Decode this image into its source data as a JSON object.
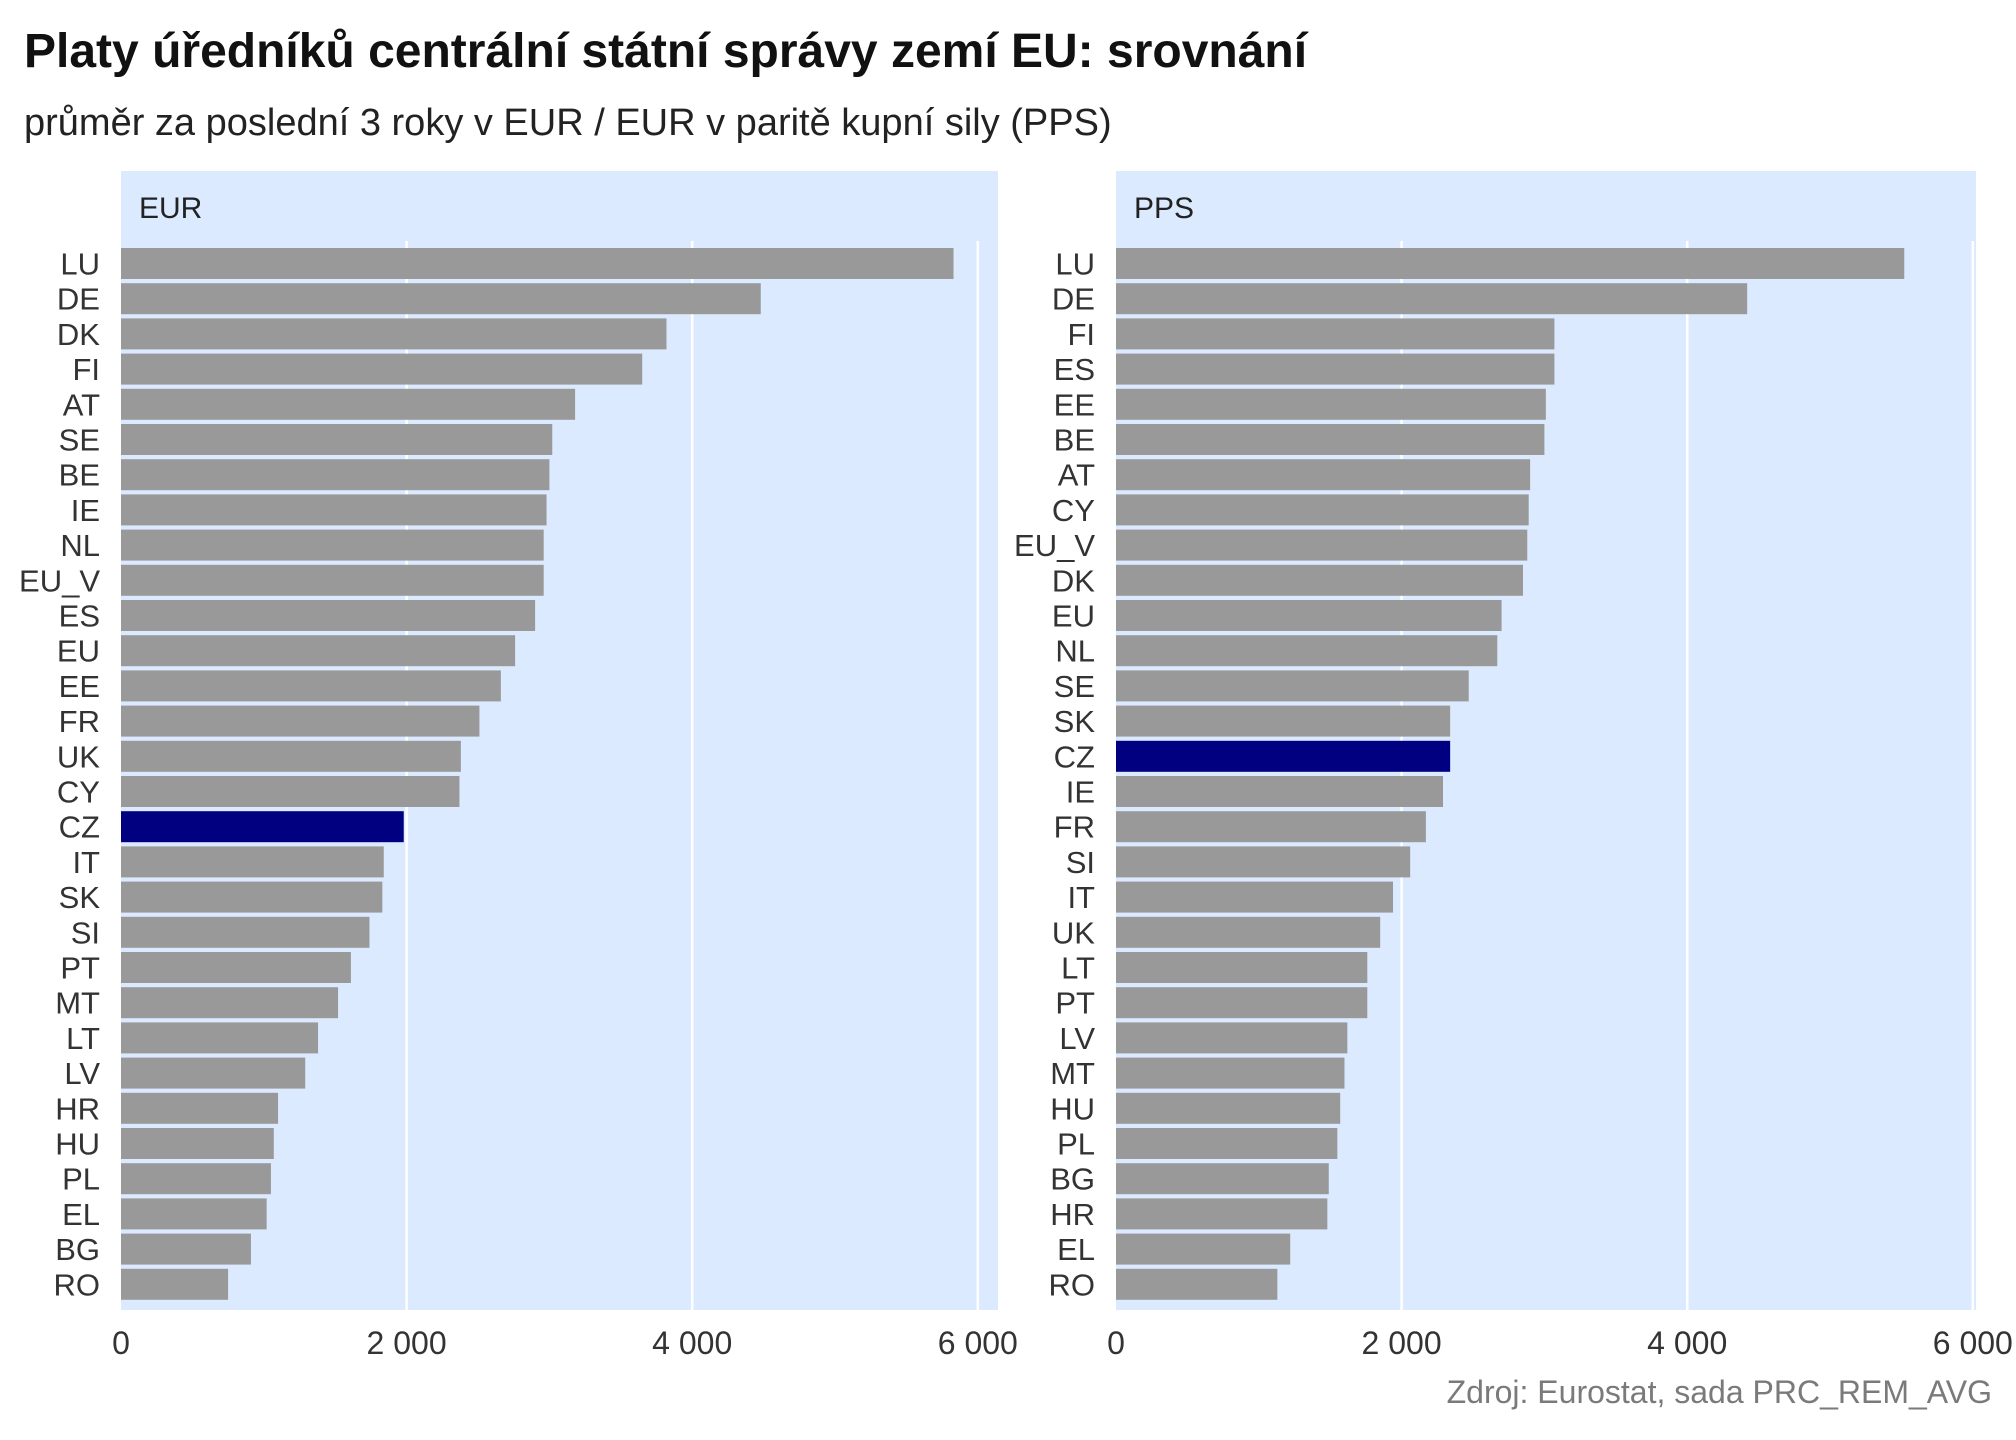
{
  "title": "Platy úředníků centrální státní správy zemí EU: srovnání",
  "subtitle": "průměr za poslední 3 roky v EUR / EUR v paritě kupní sily (PPS)",
  "source": "Zdroj: Eurostat, sada PRC_REM_AVG",
  "colors": {
    "panel_bg": "#dbeaff",
    "grid": "#ffffff",
    "bar": "#999999",
    "highlight": "#000080",
    "text": "#333333"
  },
  "chart_data": [
    {
      "type": "bar",
      "orientation": "horizontal",
      "panel_label": "EUR",
      "categories": [
        "LU",
        "DE",
        "DK",
        "FI",
        "AT",
        "SE",
        "BE",
        "IE",
        "NL",
        "EU_V",
        "ES",
        "EU",
        "EE",
        "FR",
        "UK",
        "CY",
        "CZ",
        "IT",
        "SK",
        "SI",
        "PT",
        "MT",
        "LT",
        "LV",
        "HR",
        "HU",
        "PL",
        "EL",
        "BG",
        "RO"
      ],
      "values": [
        5830,
        4480,
        3820,
        3650,
        3180,
        3020,
        3000,
        2980,
        2960,
        2960,
        2900,
        2760,
        2660,
        2510,
        2380,
        2370,
        1980,
        1840,
        1830,
        1740,
        1610,
        1520,
        1380,
        1290,
        1100,
        1070,
        1050,
        1020,
        910,
        750
      ],
      "highlight": "CZ",
      "xlim": [
        0,
        6100
      ],
      "xticks": [
        0,
        2000,
        4000,
        6000
      ],
      "xtick_labels": [
        "0",
        "2 000",
        "4 000",
        "6 000"
      ],
      "grid": true
    },
    {
      "type": "bar",
      "orientation": "horizontal",
      "panel_label": "PPS",
      "categories": [
        "LU",
        "DE",
        "FI",
        "ES",
        "EE",
        "BE",
        "AT",
        "CY",
        "EU_V",
        "DK",
        "EU",
        "NL",
        "SE",
        "SK",
        "CZ",
        "IE",
        "FR",
        "SI",
        "IT",
        "UK",
        "LT",
        "PT",
        "LV",
        "MT",
        "HU",
        "PL",
        "BG",
        "HR",
        "EL",
        "RO"
      ],
      "values": [
        5520,
        4420,
        3070,
        3070,
        3010,
        3000,
        2900,
        2890,
        2880,
        2850,
        2700,
        2670,
        2470,
        2340,
        2340,
        2290,
        2170,
        2060,
        1940,
        1850,
        1760,
        1760,
        1620,
        1600,
        1570,
        1550,
        1490,
        1480,
        1220,
        1130
      ],
      "highlight": "CZ",
      "xlim": [
        0,
        6100
      ],
      "xticks": [
        0,
        2000,
        4000,
        6000
      ],
      "xtick_labels": [
        "0",
        "2 000",
        "4 000",
        "6 000"
      ],
      "grid": true
    }
  ]
}
